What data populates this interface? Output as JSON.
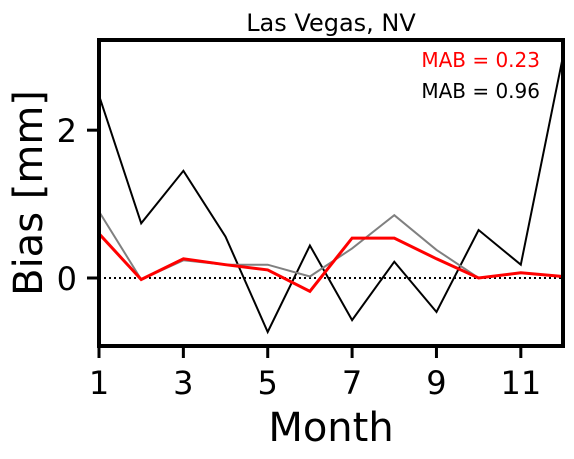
{
  "chart_data": {
    "type": "line",
    "title": "Las Vegas, NV",
    "xlabel": "Month",
    "ylabel": "Bias [mm]",
    "xlim": [
      1,
      12
    ],
    "ylim": [
      -0.92,
      3.22
    ],
    "xticks": [
      1,
      3,
      5,
      7,
      9,
      11
    ],
    "yticks": [
      0,
      2
    ],
    "grid": false,
    "reference_line": {
      "y": 0,
      "style": "dotted",
      "color": "#000000"
    },
    "x": [
      1,
      2,
      3,
      4,
      5,
      6,
      7,
      8,
      9,
      10,
      11,
      12
    ],
    "series": [
      {
        "color": "#000000",
        "values": [
          2.47,
          0.74,
          1.45,
          0.56,
          -0.73,
          0.44,
          -0.57,
          0.22,
          -0.46,
          0.65,
          0.18,
          3.0
        ]
      },
      {
        "color": "#808080",
        "values": [
          0.9,
          -0.02,
          0.24,
          0.18,
          0.18,
          0.02,
          0.4,
          0.85,
          0.38,
          0.0,
          0.07,
          0.02
        ]
      },
      {
        "color": "#ff0000",
        "values": [
          0.6,
          -0.02,
          0.26,
          0.18,
          0.11,
          -0.18,
          0.54,
          0.54,
          0.26,
          0.0,
          0.07,
          0.02
        ]
      }
    ],
    "annotations": [
      {
        "text": "MAB = 0.23",
        "color": "#ff0000",
        "position": "top-right"
      },
      {
        "text": "MAB = 0.96",
        "color": "#000000",
        "position": "top-right"
      }
    ]
  }
}
